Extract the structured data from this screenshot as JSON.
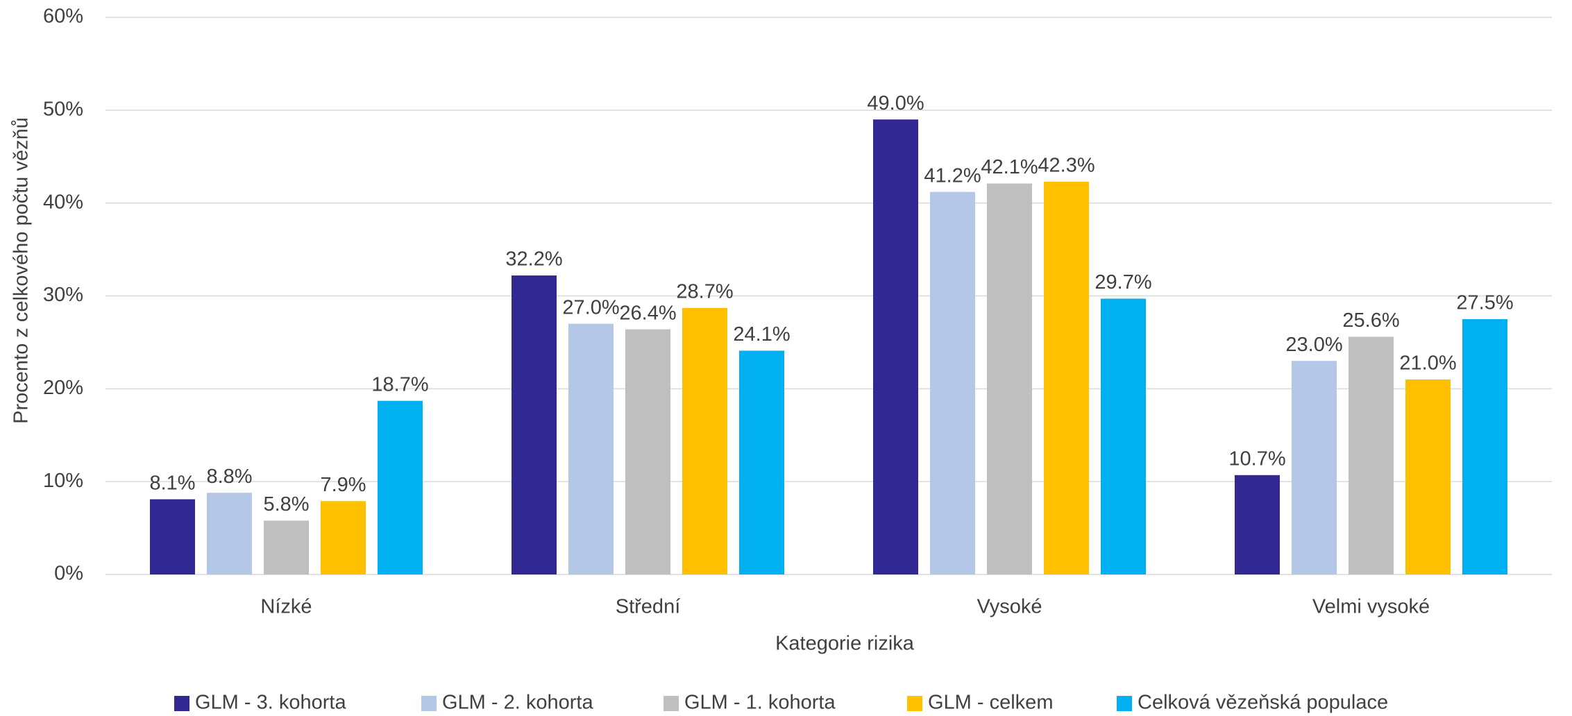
{
  "chart_data": {
    "type": "bar",
    "x_label": "Kategorie rizika",
    "y_label": "Procento z celkového počtu vězňů",
    "categories": [
      "Nízké",
      "Střední",
      "Vysoké",
      "Velmi vysoké"
    ],
    "series": [
      {
        "name": "GLM - 3. kohorta",
        "color": "#312893",
        "values": [
          8.1,
          32.2,
          49.0,
          10.7
        ],
        "value_labels": [
          "8.1%",
          "32.2%",
          "49.0%",
          "10.7%"
        ]
      },
      {
        "name": "GLM - 2. kohorta",
        "color": "#b4c7e7",
        "values": [
          8.8,
          27.0,
          41.2,
          23.0
        ],
        "value_labels": [
          "8.8%",
          "27.0%",
          "41.2%",
          "23.0%"
        ]
      },
      {
        "name": "GLM - 1. kohorta",
        "color": "#bfbfbf",
        "values": [
          5.8,
          26.4,
          42.1,
          25.6
        ],
        "value_labels": [
          "5.8%",
          "26.4%",
          "42.1%",
          "25.6%"
        ]
      },
      {
        "name": "GLM - celkem",
        "color": "#ffc000",
        "values": [
          7.9,
          28.7,
          42.3,
          21.0
        ],
        "value_labels": [
          "7.9%",
          "28.7%",
          "42.3%",
          "21.0%"
        ]
      },
      {
        "name": "Celková vězeňská populace",
        "color": "#00b0f0",
        "values": [
          18.7,
          24.1,
          29.7,
          27.5
        ],
        "value_labels": [
          "18.7%",
          "24.1%",
          "29.7%",
          "27.5%"
        ]
      }
    ],
    "ylim": [
      0,
      60
    ],
    "yticks": [
      {
        "value": 0,
        "label": "0%"
      },
      {
        "value": 10,
        "label": "10%"
      },
      {
        "value": 20,
        "label": "20%"
      },
      {
        "value": 30,
        "label": "30%"
      },
      {
        "value": 40,
        "label": "40%"
      },
      {
        "value": 50,
        "label": "50%"
      },
      {
        "value": 60,
        "label": "60%"
      }
    ],
    "grid": true,
    "legend": "bottom"
  }
}
